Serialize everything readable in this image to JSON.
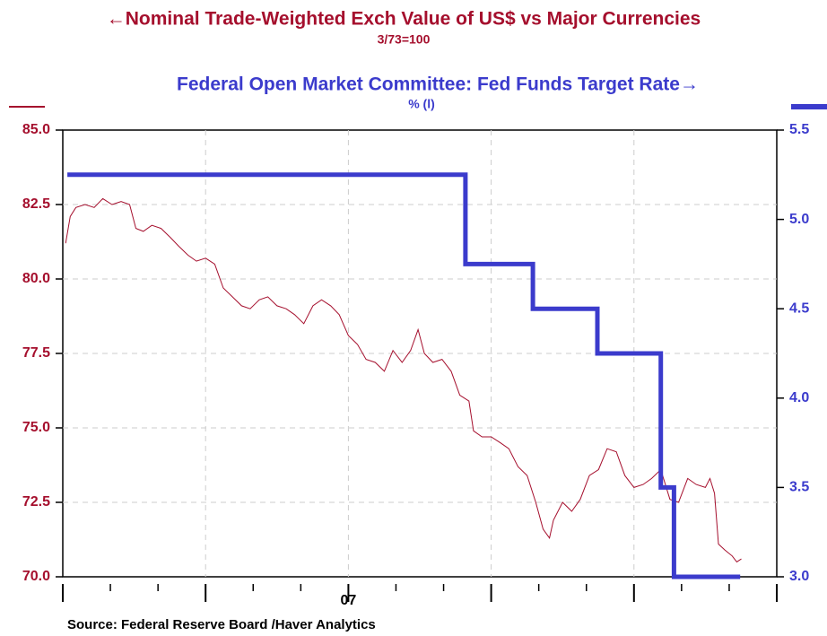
{
  "chart_data": {
    "type": "line",
    "title": "←Nominal Trade-Weighted Exch Value of US$ vs Major Currencies",
    "subtitle": "3/73=100",
    "title2": "Federal Open Market Committee: Fed Funds Target Rate→",
    "subtitle2": "%   (l)",
    "source": "Source:  Federal Reserve Board /Haver Analytics",
    "xlim": [
      2007,
      2008.25
    ],
    "xticks": [
      {
        "value": 2007.5,
        "label": "07"
      }
    ],
    "x_major_ticks": [
      2007,
      2007.25,
      2007.5,
      2007.75,
      2008,
      2008.25
    ],
    "x_minor_ticks": [
      2007.0833,
      2007.1667,
      2007.3333,
      2007.4167,
      2007.5833,
      2007.6667,
      2007.8333,
      2007.9167,
      2008.0833,
      2008.1667
    ],
    "ylim": [
      70,
      85
    ],
    "yticks": [
      {
        "value": 70,
        "label": "70.0"
      },
      72.5,
      {
        "value": 75,
        "label": "75.0"
      },
      77.5,
      {
        "value": 80,
        "label": "80.0"
      },
      82.5,
      {
        "value": 85,
        "label": "85.0"
      }
    ],
    "y2lim": [
      3,
      5.5
    ],
    "y2ticks": [
      {
        "value": 3,
        "label": "3.0"
      },
      3.5,
      {
        "value": 4,
        "label": "4.0"
      },
      4.5,
      {
        "value": 5,
        "label": "5.0"
      },
      5.5
    ],
    "grid": true,
    "series": [
      {
        "name": "Nominal Trade-Weighted Exch Value of US$ vs Major Currencies",
        "color": "#a50f2d",
        "axis": "y",
        "width": 1,
        "x": [
          2007.005,
          2007.013,
          2007.023,
          2007.039,
          2007.055,
          2007.07,
          2007.086,
          2007.102,
          2007.117,
          2007.128,
          2007.141,
          2007.156,
          2007.172,
          2007.188,
          2007.203,
          2007.219,
          2007.234,
          2007.25,
          2007.266,
          2007.281,
          2007.297,
          2007.313,
          2007.328,
          2007.344,
          2007.359,
          2007.375,
          2007.391,
          2007.406,
          2007.422,
          2007.438,
          2007.453,
          2007.469,
          2007.484,
          2007.5,
          2007.516,
          2007.531,
          2007.547,
          2007.563,
          2007.578,
          2007.594,
          2007.609,
          2007.622,
          2007.633,
          2007.648,
          2007.664,
          2007.68,
          2007.695,
          2007.711,
          2007.719,
          2007.734,
          2007.75,
          2007.766,
          2007.781,
          2007.797,
          2007.813,
          2007.828,
          2007.841,
          2007.852,
          2007.859,
          2007.875,
          2007.891,
          2007.906,
          2007.922,
          2007.938,
          2007.953,
          2007.969,
          2007.984,
          2008.0,
          2008.016,
          2008.031,
          2008.047,
          2008.063,
          2008.078,
          2008.094,
          2008.109,
          2008.125,
          2008.133,
          2008.141,
          2008.148,
          2008.159,
          2008.172,
          2008.18,
          2008.188
        ],
        "values": [
          81.2,
          82.1,
          82.4,
          82.5,
          82.4,
          82.7,
          82.5,
          82.6,
          82.5,
          81.7,
          81.6,
          81.8,
          81.7,
          81.4,
          81.1,
          80.8,
          80.6,
          80.7,
          80.5,
          79.7,
          79.4,
          79.1,
          79.0,
          79.3,
          79.4,
          79.1,
          79.0,
          78.8,
          78.5,
          79.1,
          79.3,
          79.1,
          78.8,
          78.1,
          77.8,
          77.3,
          77.2,
          76.9,
          77.6,
          77.2,
          77.6,
          78.3,
          77.5,
          77.2,
          77.3,
          76.9,
          76.1,
          75.9,
          74.9,
          74.7,
          74.7,
          74.5,
          74.3,
          73.7,
          73.4,
          72.5,
          71.6,
          71.3,
          71.9,
          72.5,
          72.2,
          72.6,
          73.4,
          73.6,
          74.3,
          74.2,
          73.4,
          73.0,
          73.1,
          73.3,
          73.6,
          72.6,
          72.5,
          73.3,
          73.1,
          73.0,
          73.3,
          72.8,
          71.1,
          70.9,
          70.7,
          70.5,
          70.6
        ]
      },
      {
        "name": "Federal Open Market Committee: Fed Funds Target Rate",
        "color": "#3b3bcc",
        "axis": "y2",
        "width": 5,
        "x": [
          2007.008,
          2007.705,
          2007.705,
          2007.823,
          2007.823,
          2007.936,
          2007.936,
          2008.047,
          2008.047,
          2008.07,
          2008.07,
          2008.186
        ],
        "values": [
          5.25,
          5.25,
          4.75,
          4.75,
          4.5,
          4.5,
          4.25,
          4.25,
          3.5,
          3.5,
          3.0,
          3.0
        ]
      }
    ]
  }
}
